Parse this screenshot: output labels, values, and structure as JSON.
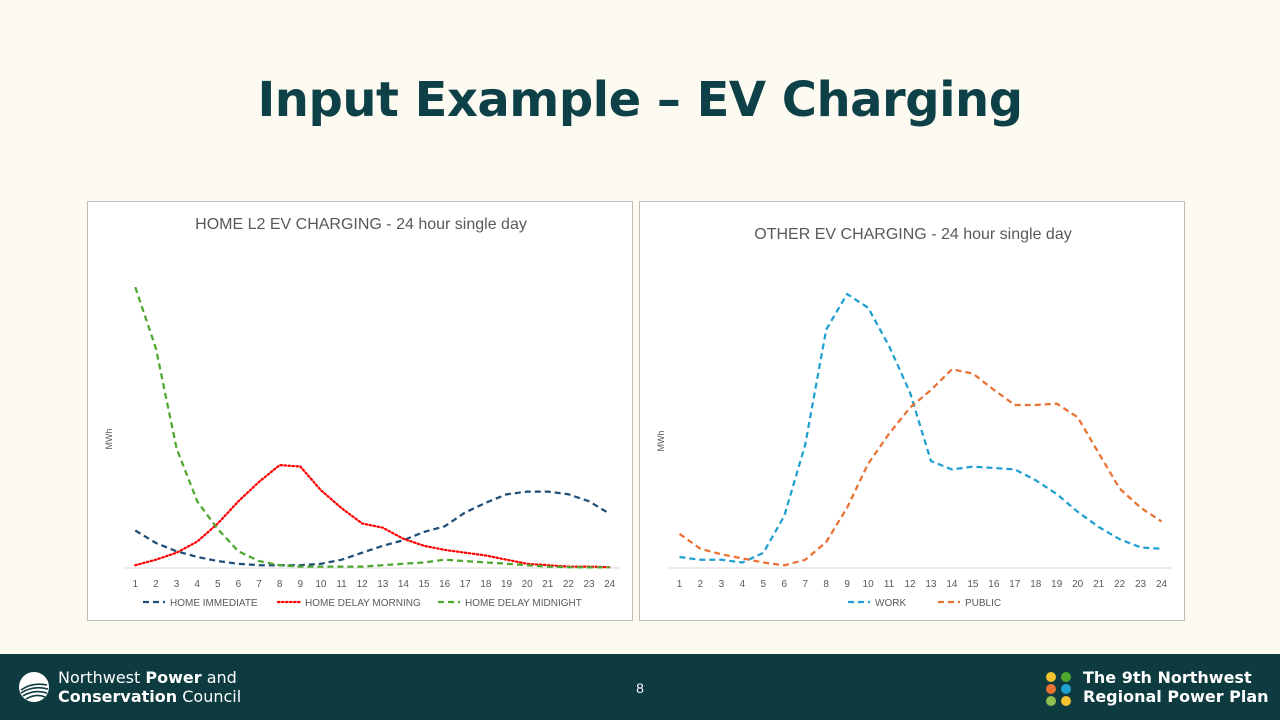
{
  "slide": {
    "title": "Input Example – EV Charging",
    "page_number": "8"
  },
  "footer": {
    "org_line1_regular": "Northwest ",
    "org_line1_bold": "Power",
    "org_line1_end": " and",
    "org_line2_bold": "Conservation",
    "org_line2_end": " Council",
    "plan_line1": "The 9th Northwest",
    "plan_line2": "Regional Power Plan"
  },
  "colors": {
    "title": "#0d4147",
    "footer_bg": "#0d3b40",
    "background": "#fcfaf1",
    "home_immediate": "#1f4e79",
    "home_delay_morning": "#ff0000",
    "home_delay_midnight": "#4ea72e",
    "work": "#20a0d0",
    "public": "#e97132"
  },
  "chart_data": [
    {
      "type": "line",
      "title": "HOME L2 EV CHARGING - 24 hour single day",
      "xlabel": "",
      "ylabel": "MWh",
      "x": [
        1,
        2,
        3,
        4,
        5,
        6,
        7,
        8,
        9,
        10,
        11,
        12,
        13,
        14,
        15,
        16,
        17,
        18,
        19,
        20,
        21,
        22,
        23,
        24
      ],
      "ylim": [
        0,
        100
      ],
      "legend_position": "bottom",
      "series": [
        {
          "name": "HOME IMMEDIATE",
          "style": "dashed",
          "color": "#1f4e79",
          "values": [
            13.5,
            9,
            6,
            4,
            2.5,
            1.5,
            1,
            1,
            1,
            1.5,
            3,
            5.5,
            8,
            10,
            13,
            15,
            20,
            23.5,
            26.5,
            27.5,
            27.5,
            26.5,
            24,
            19.5
          ]
        },
        {
          "name": "HOME DELAY MORNING",
          "style": "dotted",
          "color": "#ff0000",
          "values": [
            1,
            3,
            5.5,
            9.5,
            16,
            24,
            31,
            37,
            36.5,
            28,
            21.5,
            16,
            14.5,
            10.5,
            8,
            6.5,
            5.5,
            4.5,
            3,
            1.5,
            1,
            0.5,
            0.5,
            0.3
          ]
        },
        {
          "name": "HOME DELAY MIDNIGHT",
          "style": "dashed",
          "color": "#4ea72e",
          "values": [
            101,
            79,
            43,
            24,
            14,
            6,
            2.5,
            1,
            0.5,
            0.5,
            0.5,
            0.5,
            1,
            1.5,
            2,
            3,
            2.5,
            2,
            1.5,
            1,
            0.5,
            0.3,
            0.2,
            0.2
          ]
        }
      ]
    },
    {
      "type": "line",
      "title": "OTHER EV CHARGING - 24 hour single day",
      "xlabel": "",
      "ylabel": "MWh",
      "x": [
        1,
        2,
        3,
        4,
        5,
        6,
        7,
        8,
        9,
        10,
        11,
        12,
        13,
        14,
        15,
        16,
        17,
        18,
        19,
        20,
        21,
        22,
        23,
        24
      ],
      "ylim": [
        0,
        100
      ],
      "legend_position": "bottom",
      "series": [
        {
          "name": "WORK",
          "style": "dashed",
          "color": "#20a0d0",
          "values": [
            4,
            3,
            3,
            2,
            5.5,
            19,
            45,
            87,
            100,
            95,
            81,
            64,
            39,
            36,
            37,
            36.5,
            36,
            32,
            27,
            20.5,
            15,
            10.5,
            7.5,
            7
          ]
        },
        {
          "name": "PUBLIC",
          "style": "dashed",
          "color": "#e97132",
          "values": [
            12.5,
            7,
            5,
            3.5,
            2,
            1,
            3,
            9.5,
            22,
            38,
            49,
            58.5,
            65,
            72.5,
            71,
            65,
            59.5,
            59.5,
            60,
            55,
            42,
            29,
            22,
            17
          ]
        }
      ]
    }
  ]
}
